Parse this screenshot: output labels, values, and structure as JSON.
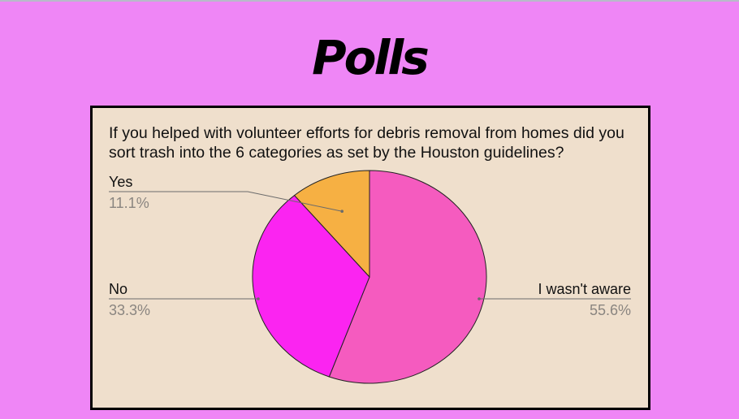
{
  "slide": {
    "title": "Polls"
  },
  "chart_data": {
    "type": "pie",
    "title": "If you helped with volunteer efforts for debris removal from homes did you sort trash into the 6 categories as set by the Houston guidelines?",
    "slices": [
      {
        "label": "I wasn't aware",
        "value": 55.6,
        "percent_label": "55.6%",
        "color": "#f55bbf"
      },
      {
        "label": "No",
        "value": 33.3,
        "percent_label": "33.3%",
        "color": "#fb24f1"
      },
      {
        "label": "Yes",
        "value": 11.1,
        "percent_label": "11.1%",
        "color": "#f6b043"
      }
    ],
    "start_angle_deg": 0,
    "direction": "clockwise",
    "label_style": "leader-lines"
  }
}
